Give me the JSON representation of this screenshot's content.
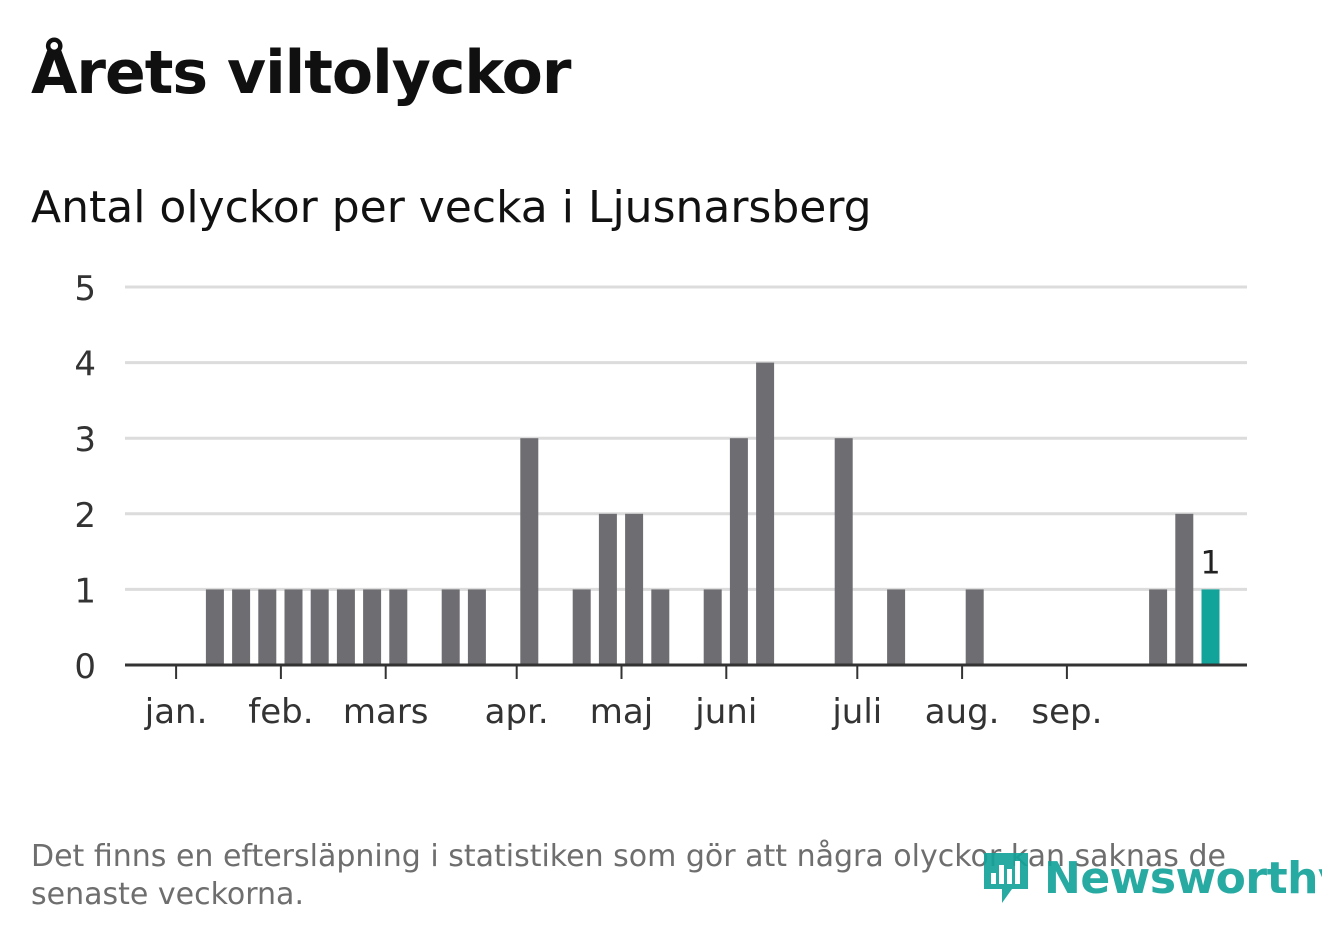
{
  "header": {
    "title": "Årets viltolyckor",
    "subtitle": "Antal olyckor per vecka i Ljusnarsberg"
  },
  "footer": {
    "note": "Det finns en eftersläpning i statistiken som gör att några olyckor kan saknas de senaste veckorna.",
    "brand": "Newsworthy"
  },
  "colors": {
    "bar": "#6e6d72",
    "highlight": "#12a39a",
    "grid": "#dcdcdc",
    "axis": "#333333",
    "brand": "#15a39a"
  },
  "chart_data": {
    "type": "bar",
    "title": "Årets viltolyckor",
    "subtitle": "Antal olyckor per vecka i Ljusnarsberg",
    "xlabel": "",
    "ylabel": "",
    "ylim": [
      0,
      5
    ],
    "yticks": [
      0,
      1,
      2,
      3,
      4,
      5
    ],
    "grid": true,
    "weeks": [
      1,
      2,
      3,
      4,
      5,
      6,
      7,
      8,
      9,
      10,
      11,
      12,
      13,
      14,
      15,
      16,
      17,
      18,
      19,
      20,
      21,
      22,
      23,
      24,
      25,
      26,
      27,
      28,
      29,
      30,
      31,
      32,
      33,
      34,
      35,
      36,
      37,
      38,
      39,
      40
    ],
    "values": [
      0,
      1,
      1,
      1,
      1,
      1,
      1,
      1,
      1,
      0,
      1,
      1,
      0,
      3,
      0,
      1,
      2,
      2,
      1,
      0,
      1,
      3,
      4,
      0,
      0,
      3,
      0,
      1,
      0,
      0,
      1,
      0,
      0,
      0,
      0,
      0,
      0,
      1,
      2,
      1
    ],
    "highlight_week": 40,
    "highlight_label": "1",
    "month_labels": [
      {
        "label": "jan.",
        "week": 1
      },
      {
        "label": "feb.",
        "week": 5
      },
      {
        "label": "mars",
        "week": 9
      },
      {
        "label": "apr.",
        "week": 14
      },
      {
        "label": "maj",
        "week": 18
      },
      {
        "label": "juni",
        "week": 22
      },
      {
        "label": "juli",
        "week": 27
      },
      {
        "label": "aug.",
        "week": 31
      },
      {
        "label": "sep.",
        "week": 35
      }
    ]
  }
}
